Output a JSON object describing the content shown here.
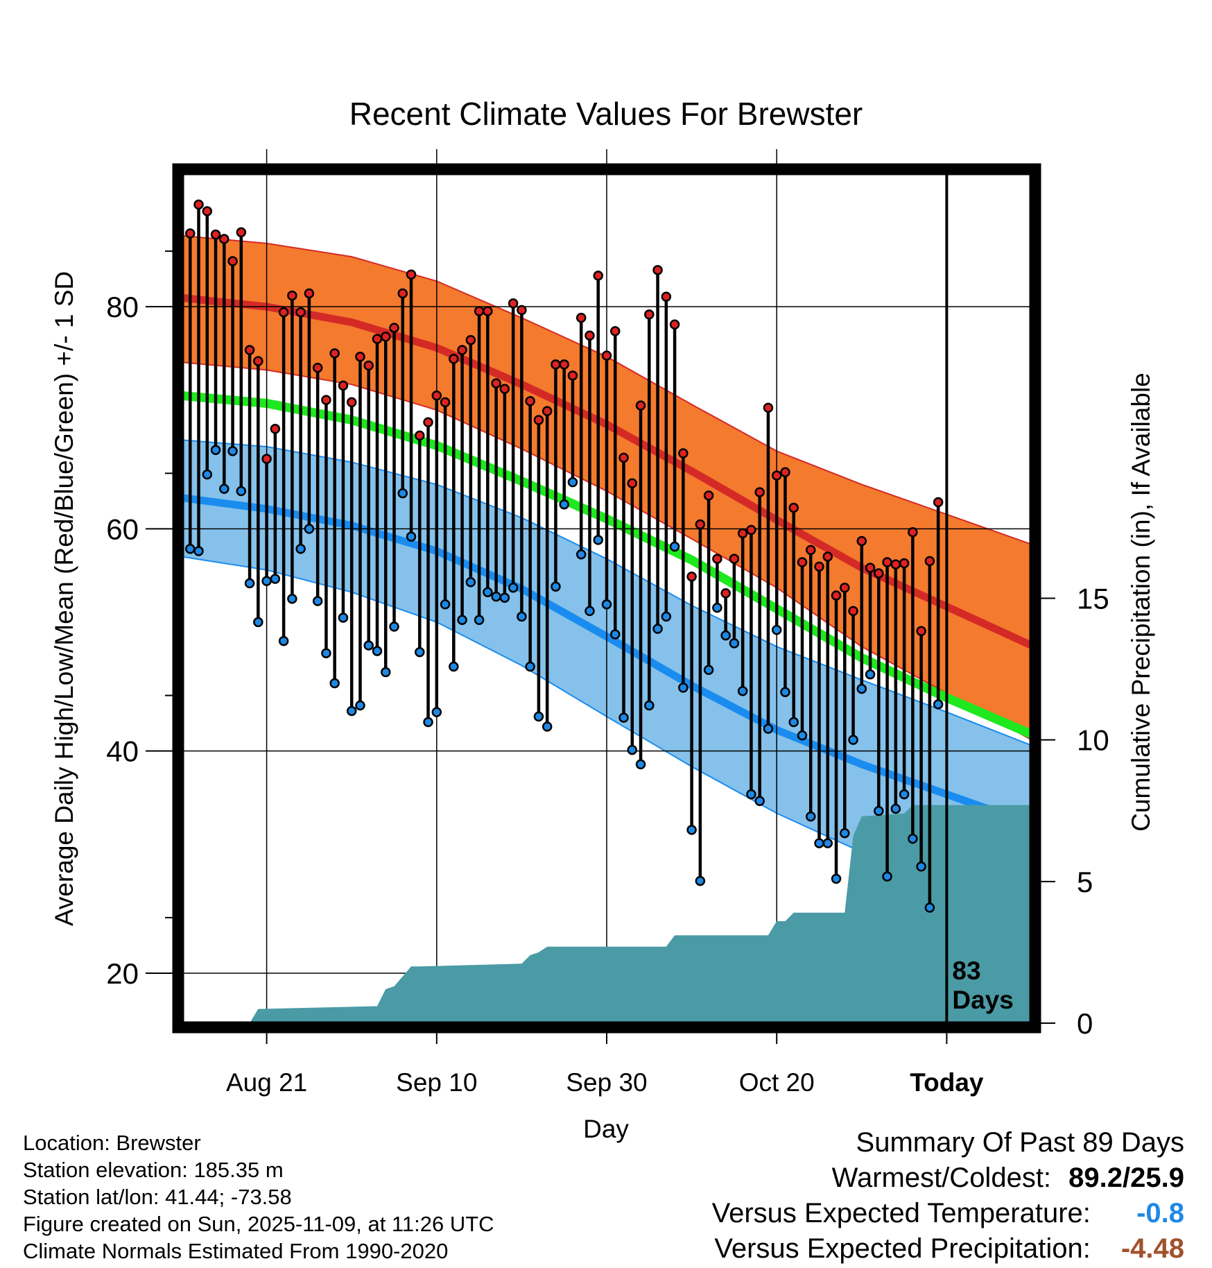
{
  "chart_data": {
    "type": "line",
    "title": "Recent Climate Values For Brewster",
    "xlabel": "Day",
    "ylabel": "Average Daily High/Low/Mean (Red/Blue/Green) +/- 1 SD",
    "y2label": "Cumulative Precipitation (in), If Available",
    "x_tick_labels": [
      "Aug 21",
      "Sep 10",
      "Sep 30",
      "Oct 20",
      "Today"
    ],
    "x_tick_days": [
      10,
      30,
      50,
      70,
      90
    ],
    "y_tick_labels": [
      "20",
      "40",
      "60",
      "80"
    ],
    "y2_tick_labels": [
      "0",
      "5",
      "10",
      "15"
    ],
    "xlim": [
      0,
      100
    ],
    "ylim": [
      15.5,
      92
    ],
    "y2lim": [
      0,
      30
    ],
    "today_day": 90,
    "today_annotation": "83\nDays",
    "normals": {
      "days": [
        0,
        10,
        20,
        30,
        40,
        50,
        60,
        70,
        80,
        90,
        100
      ],
      "high_mean": [
        80.8,
        80.0,
        78.6,
        76.3,
        73.0,
        69.4,
        65.2,
        60.8,
        56.5,
        53.0,
        49.5
      ],
      "high_upper": [
        86.4,
        85.7,
        84.5,
        82.3,
        79.0,
        75.5,
        71.2,
        67.0,
        64.0,
        61.3,
        58.6
      ],
      "high_lower": [
        75.0,
        74.3,
        73.0,
        70.7,
        67.2,
        63.4,
        59.1,
        54.7,
        49.4,
        45.2,
        41.0
      ],
      "avg_mean": [
        72.0,
        71.3,
        69.8,
        67.5,
        64.3,
        60.9,
        57.2,
        52.8,
        48.4,
        44.8,
        41.5
      ],
      "low_mean": [
        62.8,
        61.8,
        60.3,
        58.0,
        54.6,
        50.3,
        45.9,
        41.9,
        38.8,
        36.1,
        33.4
      ],
      "low_upper": [
        68.0,
        67.4,
        66.0,
        64.0,
        61.0,
        57.3,
        53.1,
        49.4,
        46.4,
        43.5,
        40.5
      ],
      "low_lower": [
        57.5,
        56.3,
        54.3,
        51.6,
        47.7,
        43.1,
        38.6,
        34.4,
        30.9,
        27.8,
        24.7
      ]
    },
    "series": [
      {
        "name": "Daily High",
        "color": "#dd2222",
        "values": [
          86.6,
          89.2,
          88.6,
          86.5,
          86.1,
          84.1,
          86.7,
          76.1,
          75.1,
          66.3,
          69.0,
          79.5,
          81.0,
          79.5,
          81.2,
          74.5,
          71.6,
          75.8,
          72.9,
          71.4,
          75.5,
          74.7,
          77.1,
          77.3,
          78.1,
          81.2,
          82.9,
          68.4,
          69.6,
          72.0,
          71.4,
          75.3,
          76.1,
          77.0,
          79.6,
          79.6,
          73.1,
          72.6,
          80.3,
          79.7,
          71.5,
          69.8,
          70.6,
          74.8,
          74.8,
          73.8,
          79.0,
          77.4,
          82.8,
          75.6,
          77.8,
          66.4,
          64.1,
          71.1,
          79.3,
          83.3,
          80.9,
          78.4,
          66.8,
          55.7,
          60.4,
          63.0,
          57.3,
          54.2,
          57.3,
          59.6,
          59.9,
          63.3,
          70.9,
          64.8,
          65.1,
          61.9,
          57.0,
          58.1,
          56.6,
          57.5,
          54.0,
          54.7,
          52.6,
          58.9,
          56.5,
          56.0,
          57.0,
          56.8,
          56.9,
          59.7,
          50.8,
          57.1,
          62.4
        ]
      },
      {
        "name": "Daily Low",
        "color": "#1e88e5",
        "values": [
          58.2,
          58.0,
          64.9,
          67.1,
          63.6,
          67.0,
          63.4,
          55.1,
          51.6,
          55.3,
          55.5,
          49.9,
          53.7,
          58.2,
          60.0,
          53.5,
          48.8,
          46.1,
          52.0,
          43.6,
          44.1,
          49.5,
          49.0,
          47.1,
          51.2,
          63.2,
          59.3,
          48.9,
          42.6,
          43.5,
          53.2,
          47.6,
          51.8,
          55.2,
          51.8,
          54.3,
          53.9,
          53.8,
          54.7,
          52.1,
          47.6,
          43.1,
          42.2,
          54.8,
          62.2,
          64.2,
          57.7,
          52.6,
          59.0,
          53.2,
          50.5,
          43.0,
          40.1,
          38.8,
          44.1,
          51.0,
          52.1,
          58.4,
          45.7,
          32.9,
          28.3,
          47.3,
          52.9,
          50.4,
          49.7,
          45.4,
          36.1,
          35.5,
          42.0,
          50.9,
          45.3,
          42.6,
          41.4,
          34.1,
          31.7,
          31.7,
          28.5,
          32.6,
          41.0,
          45.6,
          46.9,
          34.6,
          28.7,
          34.8,
          36.1,
          32.1,
          29.6,
          25.9,
          44.2
        ]
      },
      {
        "name": "Cumulative Precipitation",
        "color": "#4a9ba5",
        "days": [
          0,
          8,
          9,
          23,
          24,
          25,
          27,
          28,
          40,
          41,
          42,
          43,
          45,
          57,
          58,
          69,
          70,
          71,
          72,
          78,
          79,
          80,
          85,
          86,
          100
        ],
        "values": [
          0,
          0,
          0.5,
          0.6,
          1.2,
          1.3,
          2.0,
          2.0,
          2.1,
          2.4,
          2.5,
          2.7,
          2.7,
          2.7,
          3.1,
          3.1,
          3.6,
          3.6,
          3.9,
          3.9,
          6.6,
          7.3,
          7.4,
          7.7,
          7.7
        ]
      }
    ]
  },
  "info": {
    "location": "Location: Brewster",
    "elevation": "Station elevation: 185.35 m",
    "latlon": "Station lat/lon: 41.44; -73.58",
    "created": "Figure created on Sun, 2025-11-09, at 11:26 UTC",
    "normals_range": "Climate Normals Estimated From 1990-2020"
  },
  "summary": {
    "heading": "Summary Of Past 89 Days",
    "warmest_label": "Warmest/Coldest:",
    "warmest_value": "89.2/25.9",
    "temp_label": "Versus Expected Temperature:",
    "temp_value": "-0.8",
    "precip_label": "Versus Expected Precipitation:",
    "precip_value": "-4.48"
  },
  "colors": {
    "high_band": "#f47a2e",
    "high_line": "#d42a26",
    "low_band": "#85c1ea",
    "low_line": "#1a8cf0",
    "avg_line": "#1ee81e",
    "precip_fill": "#4a9ba5",
    "high_point": "#dd2222",
    "low_point": "#1e88e5",
    "temp_value": "#1e88e5",
    "precip_value": "#a0522d"
  }
}
